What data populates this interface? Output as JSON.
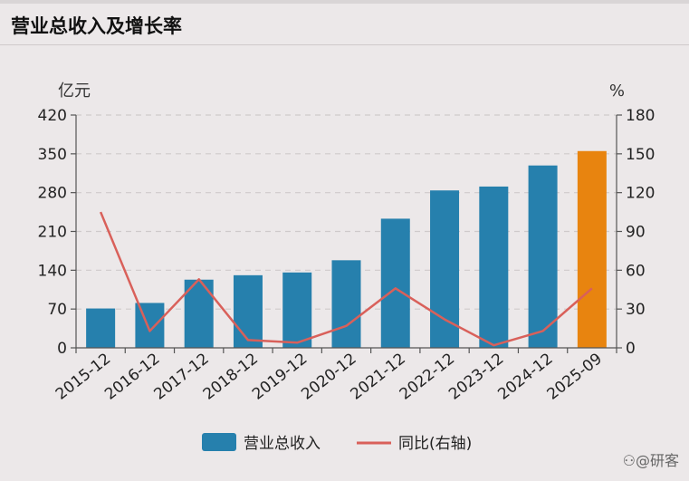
{
  "header": {
    "title": "营业总收入及增长率"
  },
  "watermark": "⚇@研客",
  "colors": {
    "bar": "#2680ad",
    "bar_highlight": "#e8840f",
    "line": "#d9605a",
    "grid": "#cfcacb",
    "axis": "#555555"
  },
  "chart_data": {
    "type": "bar",
    "categories": [
      "2015-12",
      "2016-12",
      "2017-12",
      "2018-12",
      "2019-12",
      "2020-12",
      "2021-12",
      "2022-12",
      "2023-12",
      "2024-12",
      "2025-09"
    ],
    "series": [
      {
        "name": "营业总收入",
        "type": "bar",
        "axis": "left",
        "values": [
          71,
          81,
          123,
          131,
          136,
          158,
          233,
          284,
          291,
          329,
          355
        ],
        "highlight_index": 10
      },
      {
        "name": "同比(右轴)",
        "type": "line",
        "axis": "right",
        "values": [
          105,
          13,
          53,
          6,
          4,
          17,
          46,
          22,
          2,
          13,
          46
        ]
      }
    ],
    "y_left": {
      "unit": "亿元",
      "range": [
        0,
        420
      ],
      "ticks": [
        0,
        70,
        140,
        210,
        280,
        350,
        420
      ]
    },
    "y_right": {
      "unit": "%",
      "range": [
        0,
        180
      ],
      "ticks": [
        0,
        30,
        60,
        90,
        120,
        150,
        180
      ]
    },
    "grid": true,
    "legend": {
      "position": "bottom",
      "entries": [
        "营业总收入",
        "同比(右轴)"
      ]
    }
  }
}
